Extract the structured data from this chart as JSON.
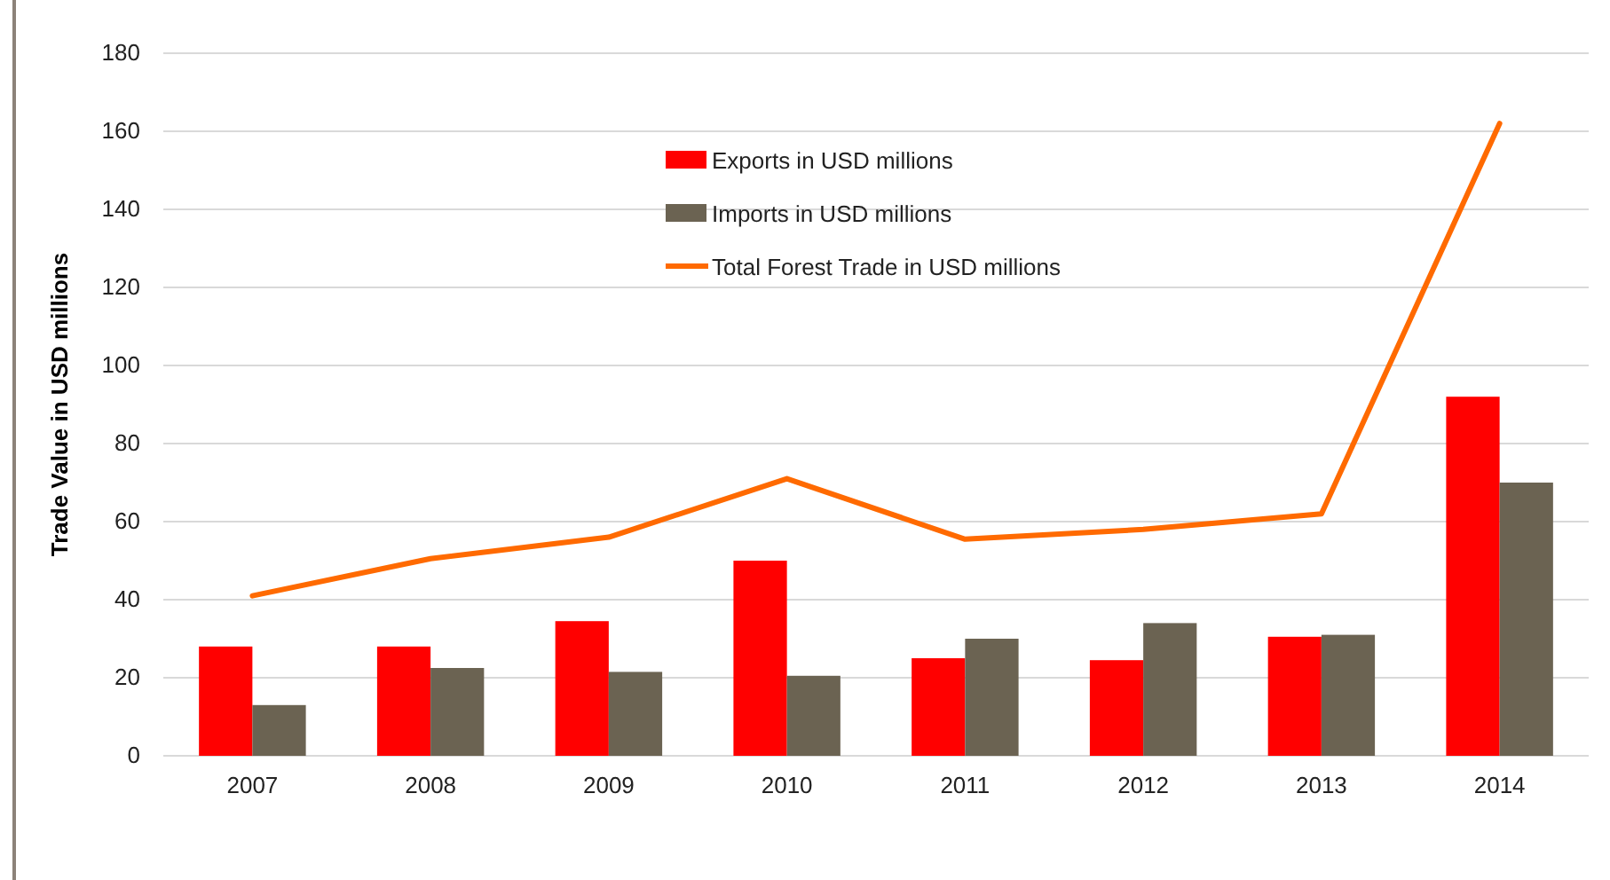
{
  "chart_data": {
    "type": "bar",
    "ylabel": "Trade Value in USD millions",
    "categories": [
      "2007",
      "2008",
      "2009",
      "2010",
      "2011",
      "2012",
      "2013",
      "2014"
    ],
    "series": [
      {
        "name": "Exports in USD millions",
        "color": "#ff0000",
        "values": [
          28,
          28,
          34.5,
          50,
          25,
          24.5,
          30.5,
          92
        ]
      },
      {
        "name": "Imports in USD millions",
        "color": "#6b6352",
        "values": [
          13,
          22.5,
          21.5,
          20.5,
          30,
          34,
          31,
          70
        ]
      },
      {
        "name": "Total Forest Trade in USD millions",
        "type": "line",
        "color": "#ff6a00",
        "values": [
          41,
          50.5,
          56,
          71,
          55.5,
          58,
          62,
          162
        ]
      }
    ],
    "ylim": [
      0,
      180
    ],
    "yticks": [
      0,
      20,
      40,
      60,
      80,
      100,
      120,
      140,
      160,
      180
    ],
    "grid": "y",
    "legend": "top",
    "line_style": "solid",
    "marker": "none"
  }
}
